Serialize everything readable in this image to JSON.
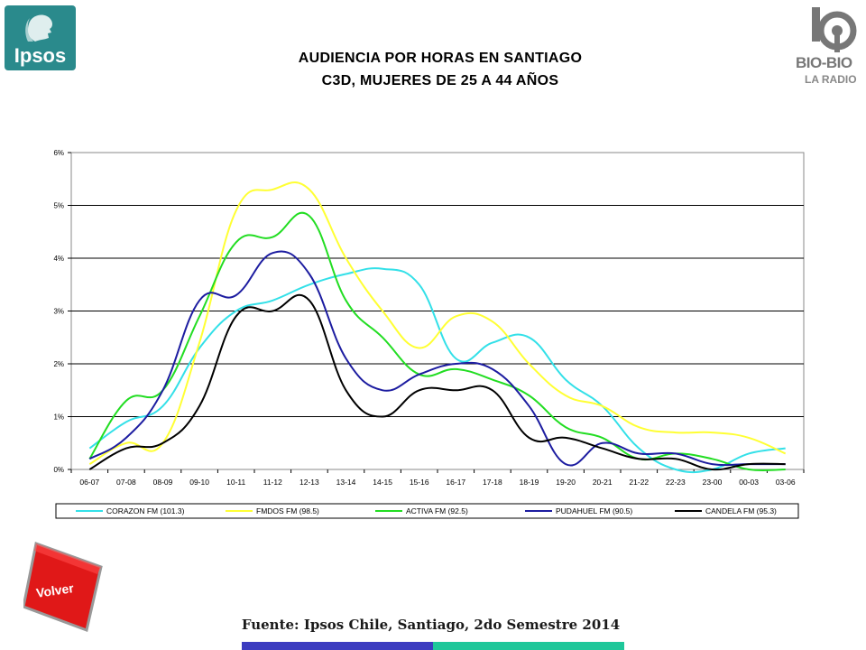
{
  "header": {
    "title_line1": "AUDIENCIA POR HORAS EN SANTIAGO",
    "title_line2": "C3D, MUJERES DE 25 A 44 AÑOS",
    "logo_left_text": "Ipsos",
    "logo_right_text1": "BIO-BIO",
    "logo_right_text2": "LA RADIO"
  },
  "footer": {
    "source": "Fuente: Ipsos Chile, Santiago, 2do Semestre 2014",
    "back_button": "Volver"
  },
  "chart_data": {
    "type": "line",
    "title": "",
    "xlabel": "",
    "ylabel": "",
    "ylim": [
      0,
      6
    ],
    "ytick_labels": [
      "0%",
      "1%",
      "2%",
      "3%",
      "4%",
      "5%",
      "6%"
    ],
    "grid": "horizontal",
    "legend_position": "bottom",
    "categories": [
      "06-07",
      "07-08",
      "08-09",
      "09-10",
      "10-11",
      "11-12",
      "12-13",
      "13-14",
      "14-15",
      "15-16",
      "16-17",
      "17-18",
      "18-19",
      "19-20",
      "20-21",
      "21-22",
      "22-23",
      "23-00",
      "00-03",
      "03-06"
    ],
    "series": [
      {
        "name": "CORAZON FM (101.3)",
        "color": "#33e0e8",
        "values": [
          0.4,
          0.9,
          1.2,
          2.3,
          3.0,
          3.2,
          3.5,
          3.7,
          3.8,
          3.5,
          2.1,
          2.4,
          2.5,
          1.7,
          1.2,
          0.4,
          0.0,
          0.0,
          0.3,
          0.4
        ]
      },
      {
        "name": "FMDOS FM (98.5)",
        "color": "#ffff33",
        "values": [
          0.1,
          0.5,
          0.5,
          2.4,
          4.9,
          5.3,
          5.3,
          4.0,
          3.0,
          2.3,
          2.9,
          2.8,
          2.0,
          1.4,
          1.2,
          0.8,
          0.7,
          0.7,
          0.6,
          0.3
        ]
      },
      {
        "name": "ACTIVA FM (92.5)",
        "color": "#22dd22",
        "values": [
          0.2,
          1.3,
          1.5,
          2.9,
          4.3,
          4.4,
          4.8,
          3.2,
          2.5,
          1.8,
          1.9,
          1.7,
          1.4,
          0.8,
          0.6,
          0.2,
          0.3,
          0.2,
          0.0,
          0.0
        ]
      },
      {
        "name": "PUDAHUEL FM (90.5)",
        "color": "#1c1ca0",
        "values": [
          0.2,
          0.6,
          1.5,
          3.2,
          3.3,
          4.1,
          3.7,
          2.1,
          1.5,
          1.8,
          2.0,
          1.9,
          1.2,
          0.1,
          0.5,
          0.3,
          0.3,
          0.1,
          0.1,
          0.1
        ]
      },
      {
        "name": "CANDELA FM (95.3)",
        "color": "#000000",
        "values": [
          0.0,
          0.4,
          0.5,
          1.2,
          2.9,
          3.0,
          3.2,
          1.5,
          1.0,
          1.5,
          1.5,
          1.5,
          0.6,
          0.6,
          0.4,
          0.2,
          0.2,
          0.0,
          0.1,
          0.1
        ]
      }
    ]
  }
}
